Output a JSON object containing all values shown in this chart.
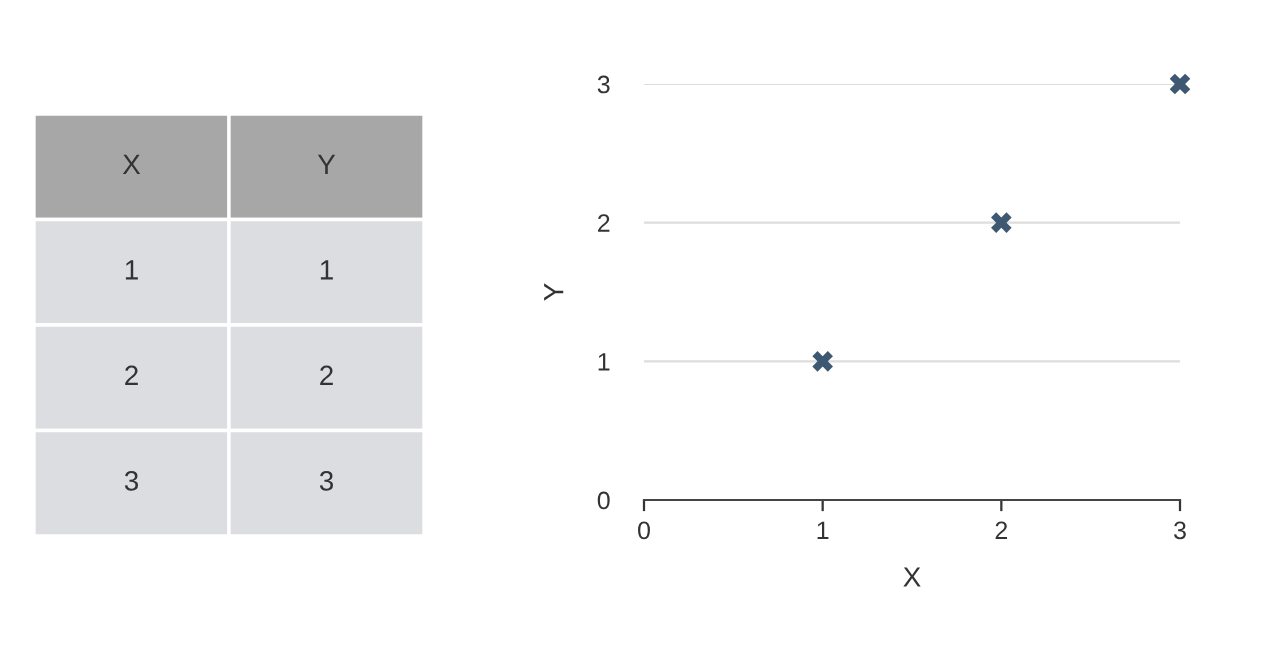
{
  "chart_data": [
    {
      "type": "other",
      "annotations": [
        "X",
        "Y",
        "1",
        "1",
        "2",
        "2",
        "3",
        "3"
      ]
    },
    {
      "type": "scatter",
      "xlabel": "X",
      "ylabel": "Y",
      "x": [
        1,
        2,
        3
      ],
      "series": [
        {
          "color": "#3e5871",
          "values": [
            1,
            2,
            3
          ]
        }
      ],
      "xlim": [
        0,
        3
      ],
      "ylim": [
        0,
        3
      ],
      "xticks": [
        0,
        1,
        2,
        3
      ],
      "yticks": [
        0,
        1,
        2,
        3
      ],
      "grid": "y",
      "marker": "cross"
    }
  ]
}
